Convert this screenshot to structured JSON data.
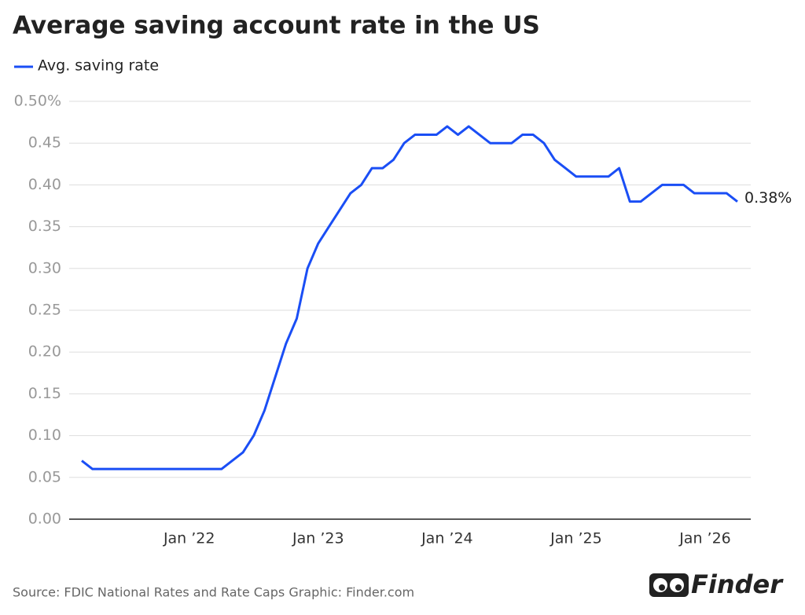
{
  "chart_data": {
    "type": "line",
    "title": "Average saving account rate in the US",
    "categories": [
      null,
      null,
      null,
      null,
      null,
      null,
      null,
      null,
      null,
      null,
      "Jan ’22",
      null,
      null,
      null,
      null,
      null,
      null,
      null,
      null,
      null,
      null,
      null,
      "Jan ’23",
      null,
      null,
      null,
      null,
      null,
      null,
      null,
      null,
      null,
      null,
      null,
      "Jan ’24",
      null,
      null,
      null,
      null,
      null,
      null,
      null,
      null,
      null,
      null,
      null,
      "Jan ’25",
      null,
      null,
      null,
      null,
      null,
      null,
      null,
      null,
      null,
      null,
      null,
      "Jan ’26",
      null,
      null,
      null
    ],
    "series": [
      {
        "name": "Avg. saving rate",
        "color": "#1a4ef5",
        "values": [
          0.07,
          0.06,
          0.06,
          0.06,
          0.06,
          0.06,
          0.06,
          0.06,
          0.06,
          0.06,
          0.06,
          0.06,
          0.06,
          0.06,
          0.07,
          0.08,
          0.1,
          0.13,
          0.17,
          0.21,
          0.24,
          0.3,
          0.33,
          0.35,
          0.37,
          0.39,
          0.4,
          0.42,
          0.42,
          0.43,
          0.45,
          0.46,
          0.46,
          0.46,
          0.47,
          0.46,
          0.47,
          0.46,
          0.45,
          0.45,
          0.45,
          0.46,
          0.46,
          0.45,
          0.43,
          0.42,
          0.41,
          0.41,
          0.41,
          0.41,
          0.42,
          0.38,
          0.38,
          0.39,
          0.4,
          0.4,
          0.4,
          0.39,
          0.39,
          0.39,
          0.39,
          0.38
        ],
        "value_labels": [
          null,
          null,
          null,
          null,
          null,
          null,
          null,
          null,
          null,
          null,
          null,
          null,
          null,
          null,
          null,
          null,
          null,
          null,
          null,
          null,
          null,
          null,
          null,
          null,
          null,
          null,
          null,
          null,
          null,
          null,
          null,
          null,
          null,
          null,
          null,
          null,
          null,
          null,
          null,
          null,
          null,
          null,
          null,
          null,
          null,
          null,
          null,
          null,
          null,
          null,
          null,
          null,
          null,
          null,
          null,
          null,
          null,
          null,
          null,
          null,
          null,
          "0.38%"
        ]
      }
    ],
    "ylim": [
      0,
      0.5
    ],
    "yticks": [
      {
        "value": 0,
        "label": "0.00"
      },
      {
        "value": 0.05,
        "label": "0.05"
      },
      {
        "value": 0.1,
        "label": "0.10"
      },
      {
        "value": 0.15,
        "label": "0.15"
      },
      {
        "value": 0.2,
        "label": "0.20"
      },
      {
        "value": 0.25,
        "label": "0.25"
      },
      {
        "value": 0.3,
        "label": "0.30"
      },
      {
        "value": 0.35,
        "label": "0.35"
      },
      {
        "value": 0.4,
        "label": "0.40"
      },
      {
        "value": 0.45,
        "label": "0.45"
      },
      {
        "value": 0.5,
        "label": "0.50%"
      }
    ],
    "grid": true,
    "source": "Source: FDIC National Rates and Rate Caps Graphic: Finder.com",
    "logo": "Finder"
  }
}
